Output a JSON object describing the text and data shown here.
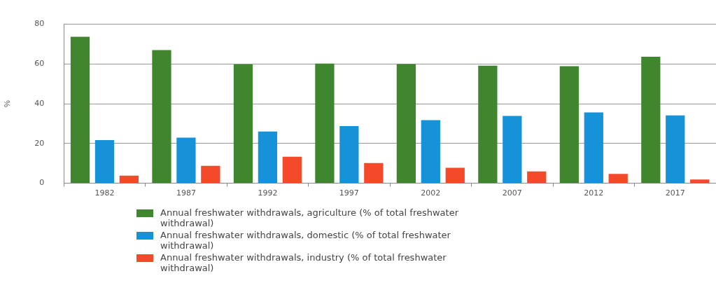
{
  "chart_data": {
    "type": "bar",
    "ylabel": "%",
    "categories": [
      "1982",
      "1987",
      "1992",
      "1997",
      "2002",
      "2007",
      "2012",
      "2017"
    ],
    "series": [
      {
        "name": "Annual freshwater withdrawals, agriculture (% of total freshwater withdrawal)",
        "color": "#3f862e",
        "values": [
          73.7,
          67,
          59.8,
          60.2,
          59.9,
          59.1,
          58.9,
          63.6
        ]
      },
      {
        "name": "Annual freshwater withdrawals, domestic (% of total freshwater withdrawal)",
        "color": "#1592d8",
        "values": [
          21.7,
          22.9,
          26,
          28.7,
          31.7,
          33.8,
          35.6,
          34.1
        ]
      },
      {
        "name": "Annual freshwater withdrawals, industry (% of total freshwater withdrawal)",
        "color": "#f4492a",
        "values": [
          3.8,
          8.7,
          13.3,
          10.1,
          7.7,
          5.9,
          4.6,
          1.8
        ]
      }
    ],
    "ylim": [
      0,
      80
    ],
    "yticks": [
      0,
      20,
      40,
      60,
      80
    ],
    "grid": "y",
    "legend": "bottom"
  }
}
